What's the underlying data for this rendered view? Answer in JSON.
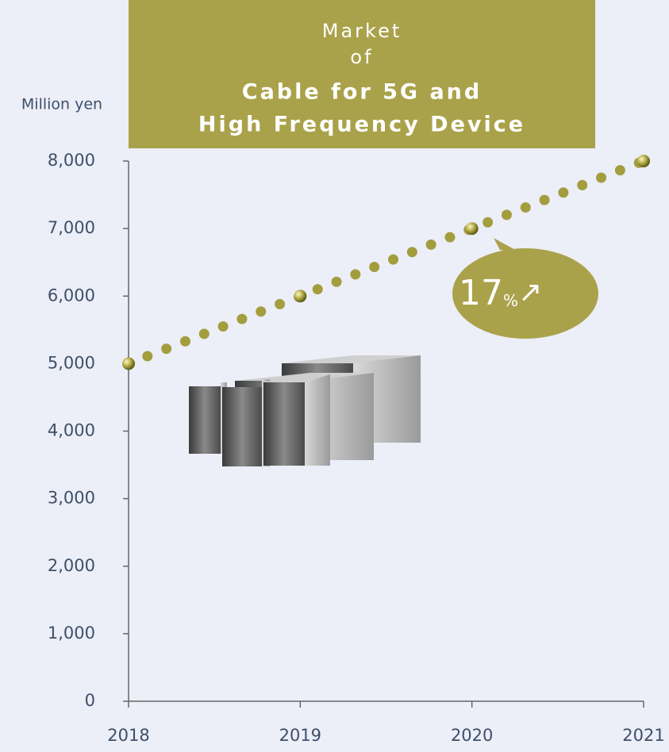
{
  "chart_data": {
    "type": "line",
    "title": [
      "Market",
      "of",
      "Cable for 5G and",
      "High Frequency Device"
    ],
    "ylabel": "Million yen",
    "x": [
      2018,
      2019,
      2020,
      2021
    ],
    "values": [
      5000,
      6000,
      7000,
      8000
    ],
    "color": "#a39d3e",
    "xlim": [
      2018,
      2021
    ],
    "xticks": [
      2018,
      2019,
      2020,
      2021
    ],
    "ylim": [
      0,
      8000
    ],
    "yticks": [
      0,
      {
        "value": 1000,
        "label": "1,000"
      },
      {
        "value": 2000,
        "label": "2,000"
      },
      {
        "value": 3000,
        "label": "3,000"
      },
      {
        "value": 4000,
        "label": "4,000"
      },
      {
        "value": 5000,
        "label": "5,000"
      },
      {
        "value": 6000,
        "label": "6,000"
      },
      {
        "value": 7000,
        "label": "7,000"
      },
      {
        "value": 8000,
        "label": "8,000"
      }
    ],
    "annotation": [
      "17",
      "%",
      "↗"
    ]
  }
}
